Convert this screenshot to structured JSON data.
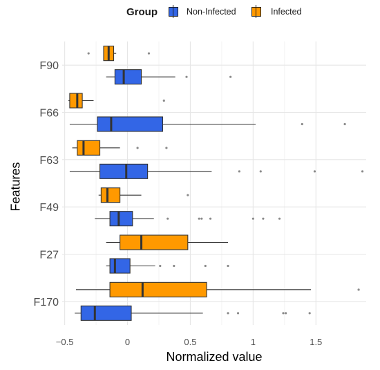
{
  "legend": {
    "title": "Group",
    "entries": [
      {
        "label": "Non-Infected",
        "color": "#3366E6"
      },
      {
        "label": "Infected",
        "color": "#FF9900"
      }
    ]
  },
  "chart_data": {
    "type": "boxplot",
    "orientation": "horizontal",
    "xlabel": "Normalized value",
    "ylabel": "Features",
    "xlim": [
      -0.52,
      1.9
    ],
    "x_ticks": [
      -0.5,
      0,
      0.5,
      1,
      1.5
    ],
    "x_tick_labels": [
      "−0.5",
      "0",
      "0.5",
      "1",
      "1.5"
    ],
    "grid": true,
    "legend_position": "top",
    "categories": [
      "F170",
      "F27",
      "F49",
      "F63",
      "F66",
      "F90"
    ],
    "series": [
      {
        "name": "Non-Infected",
        "color": "#3366E6",
        "boxes": [
          {
            "category": "F170",
            "whisker_low": -0.42,
            "q1": -0.37,
            "median": -0.26,
            "q3": 0.03,
            "whisker_high": 0.6,
            "outliers": [
              0.8,
              0.88,
              1.24,
              1.26,
              1.45
            ]
          },
          {
            "category": "F27",
            "whisker_low": -0.17,
            "q1": -0.14,
            "median": -0.1,
            "q3": 0.02,
            "whisker_high": 0.22,
            "outliers": [
              0.26,
              0.37,
              0.62,
              0.8
            ]
          },
          {
            "category": "F49",
            "whisker_low": -0.26,
            "q1": -0.14,
            "median": -0.07,
            "q3": 0.04,
            "whisker_high": 0.21,
            "outliers": [
              0.32,
              0.57,
              0.59,
              0.66,
              1.0,
              1.08,
              1.21
            ]
          },
          {
            "category": "F63",
            "whisker_low": -0.46,
            "q1": -0.22,
            "median": -0.01,
            "q3": 0.16,
            "whisker_high": 0.67,
            "outliers": [
              0.89,
              1.06,
              1.49,
              1.87
            ]
          },
          {
            "category": "F66",
            "whisker_low": -0.46,
            "q1": -0.24,
            "median": -0.13,
            "q3": 0.28,
            "whisker_high": 1.02,
            "outliers": [
              1.39,
              1.73
            ]
          },
          {
            "category": "F90",
            "whisker_low": -0.17,
            "q1": -0.1,
            "median": -0.03,
            "q3": 0.11,
            "whisker_high": 0.38,
            "outliers": [
              0.47,
              0.82
            ]
          }
        ]
      },
      {
        "name": "Infected",
        "color": "#FF9900",
        "boxes": [
          {
            "category": "F170",
            "whisker_low": -0.41,
            "q1": -0.14,
            "median": 0.12,
            "q3": 0.63,
            "whisker_high": 1.46,
            "outliers": [
              1.84
            ]
          },
          {
            "category": "F27",
            "whisker_low": -0.17,
            "q1": -0.06,
            "median": 0.11,
            "q3": 0.48,
            "whisker_high": 0.8,
            "outliers": []
          },
          {
            "category": "F49",
            "whisker_low": -0.23,
            "q1": -0.21,
            "median": -0.16,
            "q3": -0.06,
            "whisker_high": 0.11,
            "outliers": [
              0.48
            ]
          },
          {
            "category": "F63",
            "whisker_low": -0.44,
            "q1": -0.4,
            "median": -0.35,
            "q3": -0.22,
            "whisker_high": -0.06,
            "outliers": [
              0.08,
              0.31
            ]
          },
          {
            "category": "F66",
            "whisker_low": -0.47,
            "q1": -0.46,
            "median": -0.4,
            "q3": -0.36,
            "whisker_high": -0.27,
            "outliers": [
              0.29
            ]
          },
          {
            "category": "F90",
            "whisker_low": -0.19,
            "q1": -0.19,
            "median": -0.15,
            "q3": -0.11,
            "whisker_high": -0.09,
            "outliers": [
              -0.31,
              0.17
            ]
          }
        ]
      }
    ]
  }
}
